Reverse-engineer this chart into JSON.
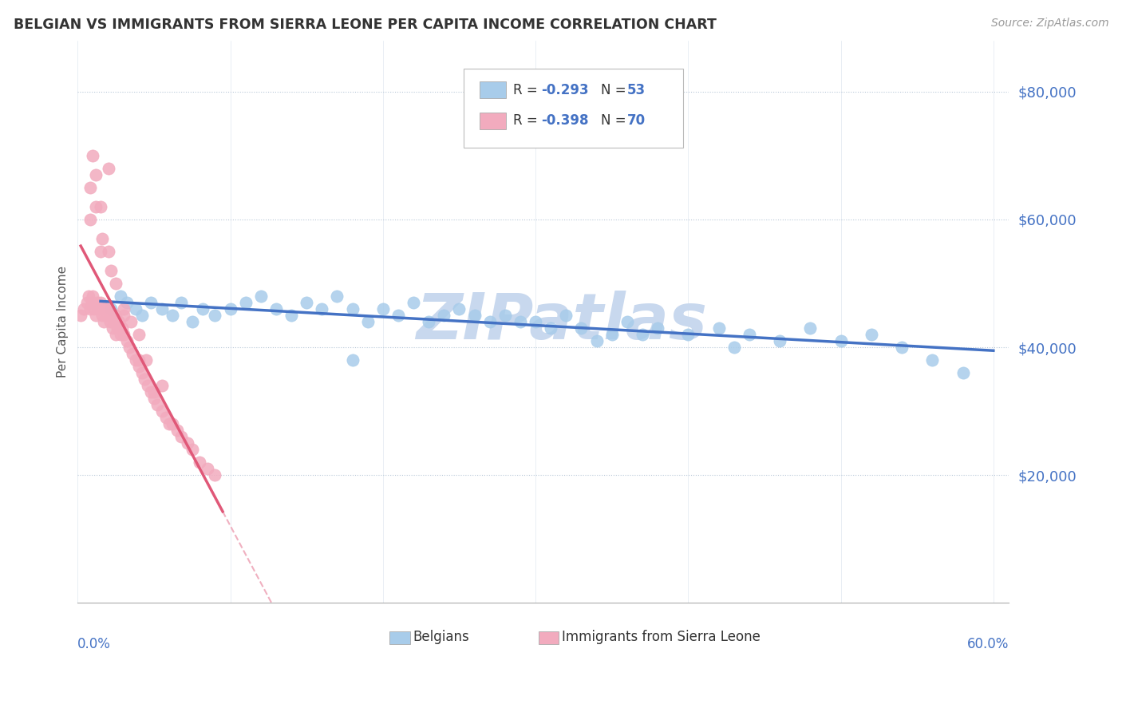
{
  "title": "BELGIAN VS IMMIGRANTS FROM SIERRA LEONE PER CAPITA INCOME CORRELATION CHART",
  "source_text": "Source: ZipAtlas.com",
  "ylabel": "Per Capita Income",
  "yticks": [
    20000,
    40000,
    60000,
    80000
  ],
  "ytick_labels": [
    "$20,000",
    "$40,000",
    "$60,000",
    "$80,000"
  ],
  "xlim": [
    0.0,
    0.61
  ],
  "ylim": [
    0,
    88000
  ],
  "belgian_color": "#A8CCEA",
  "sierra_leone_color": "#F2ABBE",
  "trend_belgian_color": "#4472C4",
  "trend_sierra_color": "#E05878",
  "trend_sierra_dashed_color": "#F0B0C0",
  "watermark_color": "#C8D8EE",
  "belgian_x": [
    0.022,
    0.028,
    0.032,
    0.038,
    0.042,
    0.048,
    0.055,
    0.062,
    0.068,
    0.075,
    0.082,
    0.09,
    0.1,
    0.11,
    0.12,
    0.13,
    0.14,
    0.15,
    0.16,
    0.17,
    0.18,
    0.19,
    0.2,
    0.21,
    0.22,
    0.23,
    0.24,
    0.25,
    0.27,
    0.28,
    0.3,
    0.31,
    0.32,
    0.33,
    0.35,
    0.36,
    0.38,
    0.4,
    0.42,
    0.44,
    0.46,
    0.48,
    0.5,
    0.52,
    0.54,
    0.56,
    0.58,
    0.18,
    0.26,
    0.29,
    0.34,
    0.43,
    0.37
  ],
  "belgian_y": [
    46000,
    48000,
    47000,
    46000,
    45000,
    47000,
    46000,
    45000,
    47000,
    44000,
    46000,
    45000,
    46000,
    47000,
    48000,
    46000,
    45000,
    47000,
    46000,
    48000,
    46000,
    44000,
    46000,
    45000,
    47000,
    44000,
    45000,
    46000,
    44000,
    45000,
    44000,
    43000,
    45000,
    43000,
    42000,
    44000,
    43000,
    42000,
    43000,
    42000,
    41000,
    43000,
    41000,
    42000,
    40000,
    38000,
    36000,
    38000,
    45000,
    44000,
    41000,
    40000,
    42000
  ],
  "sierra_x": [
    0.002,
    0.004,
    0.006,
    0.007,
    0.008,
    0.009,
    0.01,
    0.011,
    0.012,
    0.013,
    0.014,
    0.015,
    0.016,
    0.017,
    0.018,
    0.019,
    0.02,
    0.021,
    0.022,
    0.023,
    0.024,
    0.025,
    0.026,
    0.027,
    0.028,
    0.029,
    0.03,
    0.032,
    0.034,
    0.036,
    0.038,
    0.04,
    0.042,
    0.044,
    0.046,
    0.048,
    0.05,
    0.052,
    0.055,
    0.058,
    0.062,
    0.065,
    0.068,
    0.072,
    0.075,
    0.08,
    0.085,
    0.09,
    0.008,
    0.012,
    0.016,
    0.022,
    0.03,
    0.04,
    0.05,
    0.06,
    0.012,
    0.02,
    0.03,
    0.04,
    0.008,
    0.015,
    0.025,
    0.035,
    0.045,
    0.055,
    0.01,
    0.02,
    0.025,
    0.015
  ],
  "sierra_y": [
    45000,
    46000,
    47000,
    48000,
    46000,
    47000,
    48000,
    46000,
    45000,
    47000,
    46000,
    47000,
    45000,
    44000,
    46000,
    45000,
    46000,
    44000,
    45000,
    43000,
    44000,
    45000,
    43000,
    44000,
    42000,
    43000,
    42000,
    41000,
    40000,
    39000,
    38000,
    37000,
    36000,
    35000,
    34000,
    33000,
    32000,
    31000,
    30000,
    29000,
    28000,
    27000,
    26000,
    25000,
    24000,
    22000,
    21000,
    20000,
    60000,
    62000,
    57000,
    52000,
    45000,
    38000,
    33000,
    28000,
    67000,
    68000,
    46000,
    42000,
    65000,
    55000,
    50000,
    44000,
    38000,
    34000,
    70000,
    55000,
    42000,
    62000
  ],
  "legend_R_belgian": "-0.293",
  "legend_N_belgian": "53",
  "legend_R_sierra": "-0.398",
  "legend_N_sierra": "70"
}
